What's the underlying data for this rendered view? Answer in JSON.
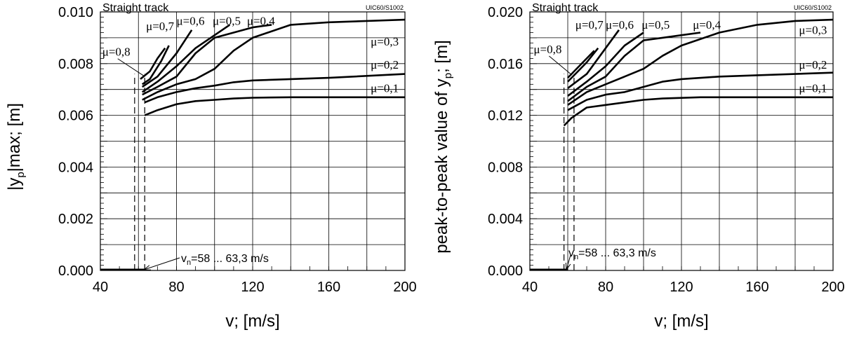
{
  "chart_data": [
    {
      "type": "line",
      "title": "Straight track",
      "code": "UIC60/S1002",
      "xlabel": "v; [m/s]",
      "ylabel": "|y_p|max; [m]",
      "ylabel_main": "|y",
      "ylabel_sub": "p",
      "ylabel_tail": "|max; [m]",
      "xlim": [
        40,
        200
      ],
      "ylim": [
        0,
        0.01
      ],
      "xticks": [
        40,
        80,
        120,
        160,
        200
      ],
      "yticks": [
        "0.000",
        "0.002",
        "0.004",
        "0.006",
        "0.008",
        "0.010"
      ],
      "grid": true,
      "annotation": {
        "prefix": "v",
        "sub": "n",
        "text": "=58 ... 63,3 m/s",
        "dashed_x": [
          58,
          63.3
        ],
        "dashed_top": 0.0076
      },
      "zero_segment": [
        40,
        63.3
      ],
      "series": [
        {
          "name": "μ=0,1",
          "x": [
            63.3,
            70,
            80,
            90,
            100,
            110,
            120,
            140,
            160,
            200
          ],
          "y": [
            0.006,
            0.0062,
            0.00643,
            0.00655,
            0.0066,
            0.00665,
            0.00668,
            0.0067,
            0.0067,
            0.0067
          ]
        },
        {
          "name": "μ=0,2",
          "x": [
            63.3,
            70,
            80,
            90,
            100,
            110,
            120,
            140,
            160,
            200
          ],
          "y": [
            0.0065,
            0.0067,
            0.0069,
            0.00705,
            0.00715,
            0.00728,
            0.00735,
            0.0074,
            0.00745,
            0.0076
          ]
        },
        {
          "name": "μ=0,3",
          "x": [
            62,
            70,
            80,
            90,
            100,
            110,
            120,
            140,
            160,
            200
          ],
          "y": [
            0.0066,
            0.0069,
            0.0072,
            0.0074,
            0.0078,
            0.0085,
            0.009,
            0.0095,
            0.0096,
            0.0097
          ]
        },
        {
          "name": "μ=0,4",
          "x": [
            62,
            70,
            80,
            90,
            100,
            110,
            120,
            130
          ],
          "y": [
            0.0068,
            0.0071,
            0.0075,
            0.0084,
            0.009,
            0.0092,
            0.0094,
            0.0095
          ]
        },
        {
          "name": "μ=0,5",
          "x": [
            62,
            70,
            80,
            90,
            100,
            108
          ],
          "y": [
            0.0069,
            0.0073,
            0.0079,
            0.0086,
            0.0091,
            0.0095
          ]
        },
        {
          "name": "μ=0,6",
          "x": [
            62,
            70,
            80,
            88
          ],
          "y": [
            0.0071,
            0.0075,
            0.0084,
            0.0093
          ]
        },
        {
          "name": "μ=0,7",
          "x": [
            62,
            66,
            72,
            76
          ],
          "y": [
            0.0072,
            0.0074,
            0.0081,
            0.0087
          ]
        },
        {
          "name": "μ=0,8",
          "x": [
            61,
            66,
            70,
            74
          ],
          "y": [
            0.0074,
            0.0077,
            0.0082,
            0.0086
          ]
        }
      ],
      "labels": [
        {
          "text": "μ=0,8",
          "x": 41,
          "y": 0.0083
        },
        {
          "text": "μ=0,7",
          "x": 64,
          "y": 0.0093
        },
        {
          "text": "μ=0,6",
          "x": 80,
          "y": 0.0095
        },
        {
          "text": "μ=0,5",
          "x": 99,
          "y": 0.0095
        },
        {
          "text": "μ=0,4",
          "x": 117,
          "y": 0.0095
        },
        {
          "text": "μ=0,3",
          "x": 182,
          "y": 0.0087
        },
        {
          "text": "μ=0,2",
          "x": 182,
          "y": 0.0078
        },
        {
          "text": "μ=0,1",
          "x": 182,
          "y": 0.0069
        }
      ]
    },
    {
      "type": "line",
      "title": "Straight track",
      "code": "UIC60/S1002",
      "xlabel": "v; [m/s]",
      "ylabel": "peak-to-peak value of y_p; [m]",
      "ylabel_main": "peak-to-peak value of y",
      "ylabel_sub": "p",
      "ylabel_tail": "; [m]",
      "xlim": [
        40,
        200
      ],
      "ylim": [
        0,
        0.02
      ],
      "xticks": [
        40,
        80,
        120,
        160,
        200
      ],
      "yticks": [
        "0.000",
        "0.004",
        "0.008",
        "0.012",
        "0.016",
        "0.020"
      ],
      "grid": true,
      "annotation": {
        "prefix": "v",
        "sub": "n",
        "text": "=58 ... 63,3 m/s",
        "dashed_x": [
          58,
          63.3
        ],
        "dashed_top": 0.0152
      },
      "zero_segment": [
        40,
        60
      ],
      "series": [
        {
          "name": "μ=0,1",
          "x": [
            58,
            62,
            70,
            80,
            90,
            100,
            110,
            120,
            130,
            140,
            160,
            200
          ],
          "y": [
            0.0112,
            0.0118,
            0.0126,
            0.0128,
            0.013,
            0.0132,
            0.0133,
            0.01335,
            0.0134,
            0.0134,
            0.0134,
            0.0134
          ]
        },
        {
          "name": "μ=0,2",
          "x": [
            60,
            70,
            80,
            90,
            100,
            110,
            120,
            140,
            160,
            200
          ],
          "y": [
            0.0124,
            0.0132,
            0.0136,
            0.0138,
            0.0142,
            0.0146,
            0.0148,
            0.015,
            0.0151,
            0.0153
          ]
        },
        {
          "name": "μ=0,3",
          "x": [
            60,
            70,
            80,
            90,
            100,
            110,
            120,
            140,
            160,
            180,
            200
          ],
          "y": [
            0.0128,
            0.0138,
            0.0144,
            0.015,
            0.0156,
            0.0166,
            0.0174,
            0.0184,
            0.019,
            0.0193,
            0.0194
          ]
        },
        {
          "name": "μ=0,4",
          "x": [
            60,
            70,
            80,
            90,
            100,
            110,
            120,
            130
          ],
          "y": [
            0.0131,
            0.0142,
            0.015,
            0.0166,
            0.0178,
            0.018,
            0.0182,
            0.0184
          ]
        },
        {
          "name": "μ=0,5",
          "x": [
            60,
            70,
            80,
            90,
            100
          ],
          "y": [
            0.0135,
            0.0146,
            0.0158,
            0.0174,
            0.0184
          ]
        },
        {
          "name": "μ=0,6",
          "x": [
            60,
            70,
            80,
            87
          ],
          "y": [
            0.0141,
            0.0152,
            0.0172,
            0.0186
          ]
        },
        {
          "name": "μ=0,7",
          "x": [
            60,
            64,
            70,
            76
          ],
          "y": [
            0.0146,
            0.0152,
            0.0161,
            0.0172
          ]
        },
        {
          "name": "μ=0,8",
          "x": [
            60,
            64,
            70,
            74
          ],
          "y": [
            0.0149,
            0.0155,
            0.0164,
            0.017
          ]
        }
      ],
      "labels": [
        {
          "text": "μ=0,8",
          "x": 42,
          "y": 0.0168
        },
        {
          "text": "μ=0,7",
          "x": 64,
          "y": 0.0187
        },
        {
          "text": "μ=0,6",
          "x": 80,
          "y": 0.0187
        },
        {
          "text": "μ=0,5",
          "x": 99,
          "y": 0.0187
        },
        {
          "text": "μ=0,4",
          "x": 126,
          "y": 0.0187
        },
        {
          "text": "μ=0,3",
          "x": 182,
          "y": 0.0183
        },
        {
          "text": "μ=0,2",
          "x": 182,
          "y": 0.0156
        },
        {
          "text": "μ=0,1",
          "x": 182,
          "y": 0.0138
        }
      ]
    }
  ]
}
